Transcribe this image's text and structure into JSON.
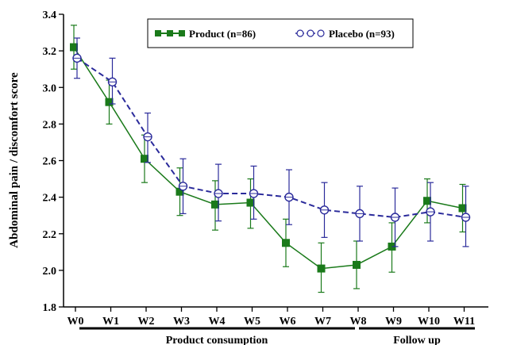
{
  "chart_data": {
    "type": "line",
    "ylabel": "Abdominal pain / discomfort score",
    "ylim": [
      1.8,
      3.4
    ],
    "yticks": [
      "1.8",
      "2.0",
      "2.2",
      "2.4",
      "2.6",
      "2.8",
      "3.0",
      "3.2",
      "3.4"
    ],
    "categories": [
      "W0",
      "W1",
      "W2",
      "W3",
      "W4",
      "W5",
      "W6",
      "W7",
      "W8",
      "W9",
      "W10",
      "W11"
    ],
    "category_labels": [
      "W0",
      "W1",
      "W2",
      "W3",
      "W4",
      "W5",
      "W6",
      "W7",
      "W8",
      "W9",
      "W10",
      "W11"
    ],
    "phases": [
      {
        "label": "Product consumption",
        "from": "W0",
        "to": "W8"
      },
      {
        "label": "Follow up",
        "from": "W8",
        "to": "W11"
      }
    ],
    "legend_position": "top",
    "series": [
      {
        "name": "Product (n=86)",
        "color": "#1a7a1a",
        "marker": "square",
        "line_style": "solid",
        "values": [
          3.22,
          2.92,
          2.61,
          2.43,
          2.36,
          2.37,
          2.15,
          2.01,
          2.03,
          2.13,
          2.38,
          2.34
        ],
        "err_low": [
          3.1,
          2.8,
          2.48,
          2.3,
          2.22,
          2.23,
          2.02,
          1.88,
          1.9,
          1.99,
          2.26,
          2.21
        ],
        "err_high": [
          3.34,
          3.04,
          2.74,
          2.56,
          2.49,
          2.5,
          2.28,
          2.15,
          2.16,
          2.26,
          2.5,
          2.47
        ]
      },
      {
        "name": "Placebo (n=93)",
        "color": "#2b2b9b",
        "marker": "circle",
        "line_style": "dashed",
        "values": [
          3.16,
          3.03,
          2.73,
          2.46,
          2.42,
          2.42,
          2.4,
          2.33,
          2.31,
          2.29,
          2.32,
          2.29
        ],
        "err_low": [
          3.05,
          2.91,
          2.59,
          2.31,
          2.27,
          2.28,
          2.25,
          2.18,
          2.16,
          2.13,
          2.16,
          2.13
        ],
        "err_high": [
          3.27,
          3.16,
          2.86,
          2.61,
          2.58,
          2.57,
          2.55,
          2.48,
          2.46,
          2.45,
          2.48,
          2.46
        ]
      }
    ]
  }
}
